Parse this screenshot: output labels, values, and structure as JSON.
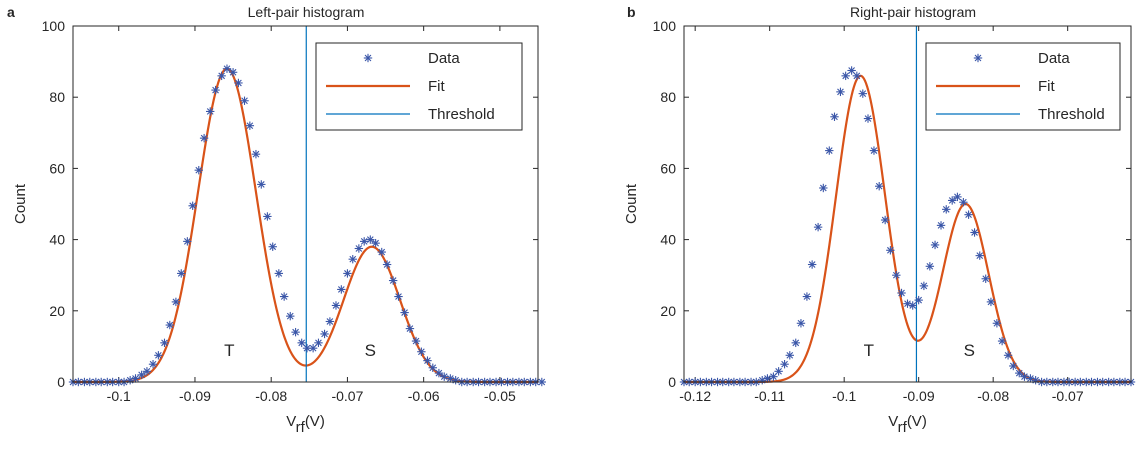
{
  "colors": {
    "data": "#3a56a8",
    "fit": "#d95319",
    "threshold": "#0072bd",
    "axis": "#262626"
  },
  "legend": {
    "location": "top-right",
    "data_label": "Data",
    "fit_label": "Fit",
    "threshold_label": "Threshold"
  },
  "chart_data": [
    {
      "type": "scatter",
      "panel": "a",
      "title": "Left-pair histogram",
      "xlabel_main": "V",
      "xlabel_sub": "rf",
      "xlabel_unit": "(V)",
      "ylabel": "Count",
      "xlim": [
        -0.106,
        -0.045
      ],
      "ylim": [
        0,
        100
      ],
      "xticks": [
        -0.1,
        -0.09,
        -0.08,
        -0.07,
        -0.06,
        -0.05
      ],
      "xtick_labels": [
        "-0.1",
        "-0.09",
        "-0.08",
        "-0.07",
        "-0.06",
        "-0.05"
      ],
      "yticks": [
        0,
        20,
        40,
        60,
        80,
        100
      ],
      "ytick_labels": [
        "0",
        "20",
        "40",
        "60",
        "80",
        "100"
      ],
      "grid": false,
      "threshold_x": -0.0754,
      "annotations": [
        {
          "text": "T",
          "x": -0.0855,
          "y": 9
        },
        {
          "text": "S",
          "x": -0.067,
          "y": 9
        }
      ],
      "fit_components": [
        {
          "amplitude": 88,
          "center": -0.0858,
          "sigma": 0.0038
        },
        {
          "amplitude": 38,
          "center": -0.0668,
          "sigma": 0.0037
        }
      ],
      "series": [
        {
          "name": "Data",
          "x": [
            -0.106,
            -0.1053,
            -0.1045,
            -0.1038,
            -0.103,
            -0.1023,
            -0.1015,
            -0.1008,
            -0.1,
            -0.0993,
            -0.0985,
            -0.0978,
            -0.097,
            -0.0963,
            -0.0955,
            -0.0948,
            -0.094,
            -0.0933,
            -0.0925,
            -0.0918,
            -0.091,
            -0.0903,
            -0.0895,
            -0.0888,
            -0.088,
            -0.0873,
            -0.0865,
            -0.0858,
            -0.085,
            -0.0843,
            -0.0835,
            -0.0828,
            -0.082,
            -0.0813,
            -0.0805,
            -0.0798,
            -0.079,
            -0.0783,
            -0.0775,
            -0.0768,
            -0.076,
            -0.0753,
            -0.0745,
            -0.0738,
            -0.073,
            -0.0723,
            -0.0715,
            -0.0708,
            -0.07,
            -0.0693,
            -0.0685,
            -0.0678,
            -0.067,
            -0.0663,
            -0.0655,
            -0.0648,
            -0.064,
            -0.0633,
            -0.0625,
            -0.0618,
            -0.061,
            -0.0603,
            -0.0595,
            -0.0588,
            -0.058,
            -0.0573,
            -0.0565,
            -0.0558,
            -0.055,
            -0.0543,
            -0.0535,
            -0.0528,
            -0.052,
            -0.0513,
            -0.0505,
            -0.0498,
            -0.049,
            -0.0483,
            -0.0475,
            -0.0468,
            -0.046,
            -0.0453,
            -0.0445
          ],
          "y": [
            0,
            0,
            0,
            0,
            0,
            0,
            0,
            0,
            0,
            0,
            0.5,
            1,
            2,
            3,
            5,
            7.5,
            11,
            16,
            22.5,
            30.5,
            39.5,
            49.5,
            59.5,
            68.5,
            76,
            82,
            86,
            88,
            87,
            84,
            79,
            72,
            64,
            55.5,
            46.5,
            38,
            30.5,
            24,
            18.5,
            14,
            11,
            9.5,
            9.5,
            11,
            13.5,
            17,
            21.5,
            26,
            30.5,
            34.5,
            37.5,
            39.5,
            40,
            39,
            36.5,
            33,
            28.5,
            24,
            19.5,
            15,
            11.5,
            8.5,
            6,
            4,
            2.5,
            1.5,
            1,
            0.5,
            0,
            0,
            0,
            0,
            0,
            0,
            0,
            0,
            0,
            0,
            0,
            0,
            0,
            0,
            0
          ]
        }
      ]
    },
    {
      "type": "scatter",
      "panel": "b",
      "title": "Right-pair histogram",
      "xlabel_main": "V",
      "xlabel_sub": "rf",
      "xlabel_unit": "(V)",
      "ylabel": "Count",
      "xlim": [
        -0.1215,
        -0.0615
      ],
      "ylim": [
        0,
        100
      ],
      "xticks": [
        -0.12,
        -0.11,
        -0.1,
        -0.09,
        -0.08,
        -0.07
      ],
      "xtick_labels": [
        "-0.12",
        "-0.11",
        "-0.1",
        "-0.09",
        "-0.08",
        "-0.07"
      ],
      "yticks": [
        0,
        20,
        40,
        60,
        80,
        100
      ],
      "ytick_labels": [
        "0",
        "20",
        "40",
        "60",
        "80",
        "100"
      ],
      "grid": false,
      "threshold_x": -0.0903,
      "annotations": [
        {
          "text": "T",
          "x": -0.0967,
          "y": 9
        },
        {
          "text": "S",
          "x": -0.0832,
          "y": 9
        }
      ],
      "fit_components": [
        {
          "amplitude": 86,
          "center": -0.0978,
          "sigma": 0.0033
        },
        {
          "amplitude": 50,
          "center": -0.0837,
          "sigma": 0.0031
        }
      ],
      "series": [
        {
          "name": "Data",
          "x": [
            -0.1215,
            -0.1208,
            -0.12,
            -0.1193,
            -0.1185,
            -0.1178,
            -0.117,
            -0.1163,
            -0.1155,
            -0.1148,
            -0.114,
            -0.1133,
            -0.1125,
            -0.1118,
            -0.111,
            -0.1103,
            -0.1095,
            -0.1088,
            -0.108,
            -0.1073,
            -0.1065,
            -0.1058,
            -0.105,
            -0.1043,
            -0.1035,
            -0.1028,
            -0.102,
            -0.1013,
            -0.1005,
            -0.0998,
            -0.099,
            -0.0983,
            -0.0975,
            -0.0968,
            -0.096,
            -0.0953,
            -0.0945,
            -0.0938,
            -0.093,
            -0.0923,
            -0.0915,
            -0.0908,
            -0.09,
            -0.0893,
            -0.0885,
            -0.0878,
            -0.087,
            -0.0863,
            -0.0855,
            -0.0848,
            -0.084,
            -0.0833,
            -0.0825,
            -0.0818,
            -0.081,
            -0.0803,
            -0.0795,
            -0.0788,
            -0.078,
            -0.0773,
            -0.0765,
            -0.0758,
            -0.075,
            -0.0743,
            -0.0735,
            -0.0728,
            -0.072,
            -0.0713,
            -0.0705,
            -0.0698,
            -0.069,
            -0.0683,
            -0.0675,
            -0.0668,
            -0.066,
            -0.0653,
            -0.0645,
            -0.0638,
            -0.063,
            -0.0623,
            -0.0615
          ],
          "y": [
            0,
            0,
            0,
            0,
            0,
            0,
            0,
            0,
            0,
            0,
            0,
            0,
            0,
            0,
            0.5,
            1,
            1.5,
            3,
            5,
            7.5,
            11,
            16.5,
            24,
            33,
            43.5,
            54.5,
            65,
            74.5,
            81.5,
            86,
            87.5,
            86,
            81,
            74,
            65,
            55,
            45.5,
            37,
            30,
            25,
            22,
            21.5,
            23,
            27,
            32.5,
            38.5,
            44,
            48.5,
            51,
            52,
            50.5,
            47,
            42,
            35.5,
            29,
            22.5,
            16.5,
            11.5,
            7.5,
            4.5,
            2.5,
            1.5,
            1,
            0.5,
            0,
            0,
            0,
            0,
            0,
            0,
            0,
            0,
            0,
            0,
            0,
            0,
            0,
            0,
            0,
            0,
            0
          ]
        }
      ]
    }
  ]
}
